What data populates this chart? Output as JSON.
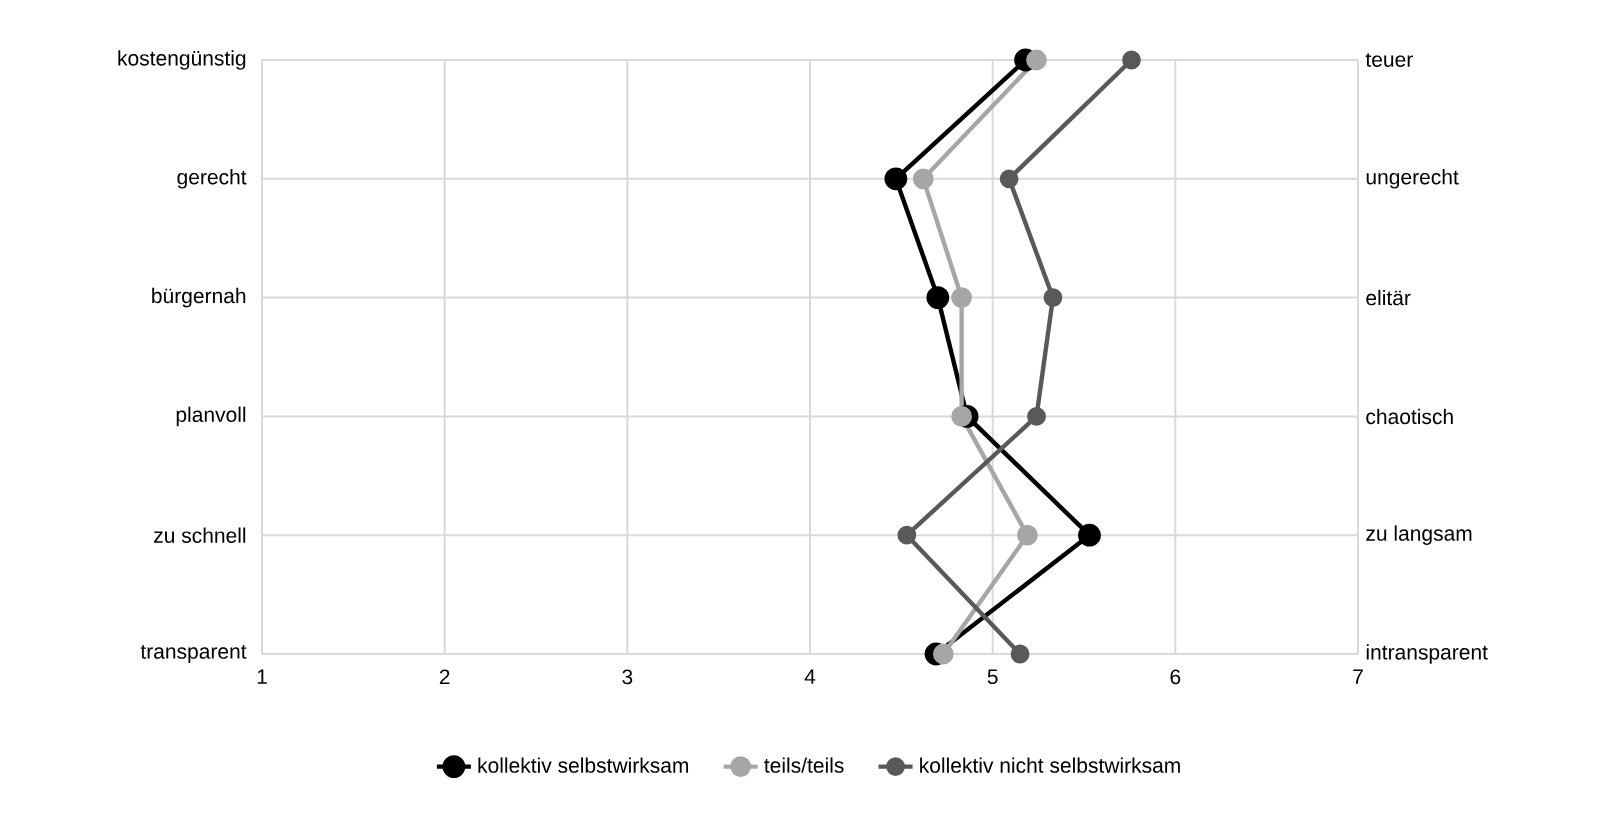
{
  "chart_data": {
    "type": "line",
    "orientation": "horizontal",
    "categories": [
      "kostengünstig",
      "gerecht",
      "bürgernah",
      "planvoll",
      "zu schnell",
      "transparent"
    ],
    "y2_categories": [
      "teuer",
      "ungerecht",
      "elitär",
      "chaotisch",
      "zu langsam",
      "intransparent"
    ],
    "xlim": [
      1,
      7
    ],
    "xticks": [
      1,
      2,
      3,
      4,
      5,
      6,
      7
    ],
    "series": [
      {
        "name": "kollektiv selbstwirksam",
        "color": "#000000",
        "values": [
          5.18,
          4.47,
          4.7,
          4.86,
          5.53,
          4.69
        ]
      },
      {
        "name": "teils/teils",
        "color": "#a6a6a6",
        "values": [
          5.24,
          4.62,
          4.83,
          4.83,
          5.19,
          4.73
        ]
      },
      {
        "name": "kollektiv nicht selbstwirksam",
        "color": "#595959",
        "values": [
          5.76,
          5.09,
          5.33,
          5.24,
          4.53,
          5.15
        ]
      }
    ],
    "grid": true,
    "legend": "bottom",
    "marker": "circle",
    "line_style": "solid"
  }
}
